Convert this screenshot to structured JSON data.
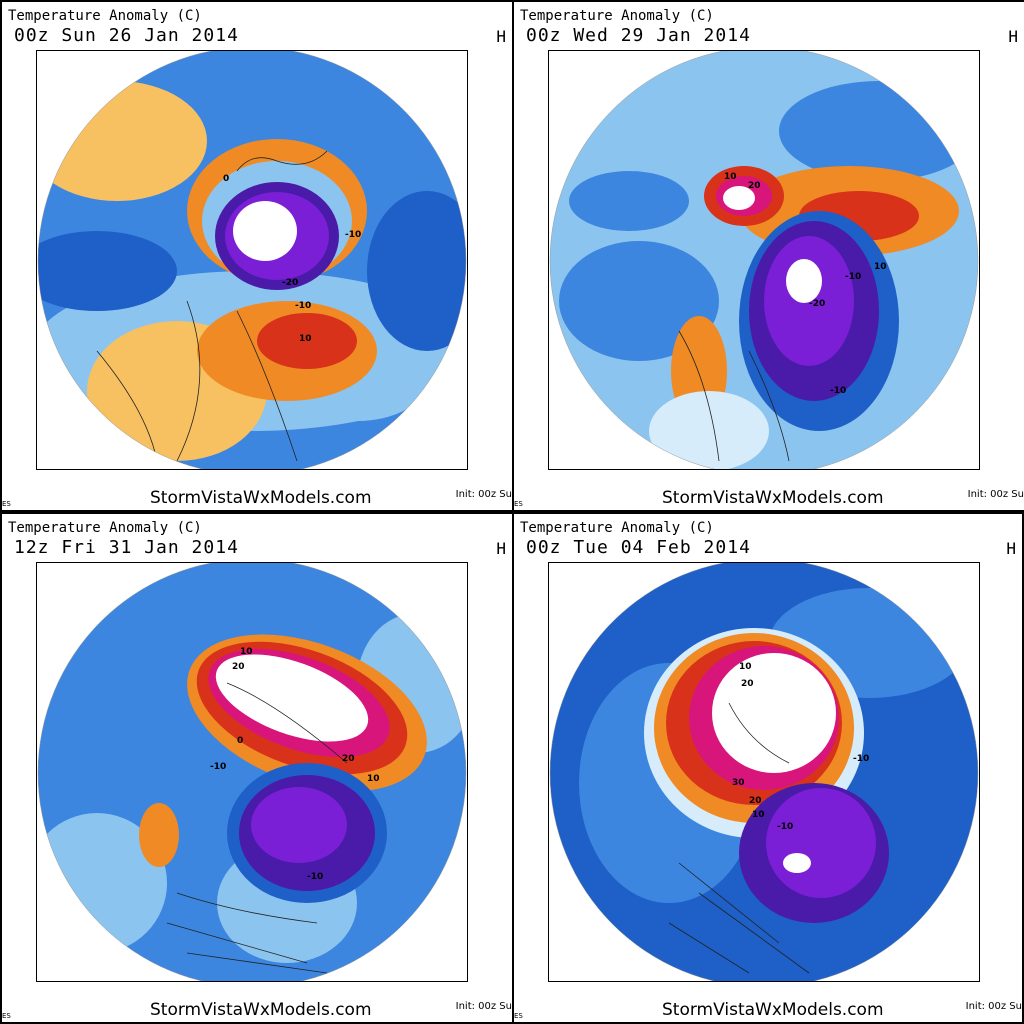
{
  "colors": {
    "deep_purple": "#4a1aa8",
    "purple": "#7a1fd6",
    "blue_dark": "#1e5fc8",
    "blue": "#3c86e0",
    "blue_light": "#8cc4f0",
    "blue_pale": "#d6ecfa",
    "orange_light": "#f7c060",
    "orange": "#f08a24",
    "red": "#d8321a",
    "magenta": "#d8157a",
    "white": "#ffffff"
  },
  "panels": [
    {
      "title": "Temperature Anomaly (C)",
      "date": "00z Sun 26 Jan 2014",
      "h_mark": "H",
      "credit": "StormVistaWxModels.com",
      "init": "Init: 00z Su",
      "es": "ES",
      "contour_labels": [
        "-10",
        "-20",
        "-10",
        "10",
        "0"
      ]
    },
    {
      "title": "Temperature Anomaly (C)",
      "date": "00z Wed 29 Jan 2014",
      "h_mark": "H",
      "credit": "StormVistaWxModels.com",
      "init": "Init: 00z Su",
      "es": "ES",
      "contour_labels": [
        "10",
        "20",
        "-10",
        "-20",
        "-10",
        "10"
      ]
    },
    {
      "title": "Temperature Anomaly (C)",
      "date": "12z Fri 31 Jan 2014",
      "h_mark": "H",
      "credit": "StormVistaWxModels.com",
      "init": "Init: 00z Su",
      "es": "ES",
      "contour_labels": [
        "10",
        "20",
        "20",
        "10",
        "-10",
        "-10",
        "0"
      ]
    },
    {
      "title": "Temperature Anomaly (C)",
      "date": "00z Tue 04 Feb 2014",
      "h_mark": "H",
      "credit": "StormVistaWxModels.com",
      "init": "Init: 00z Su",
      "es": "ES",
      "contour_labels": [
        "10",
        "20",
        "30",
        "20",
        "10",
        "-10",
        "-10"
      ]
    }
  ]
}
